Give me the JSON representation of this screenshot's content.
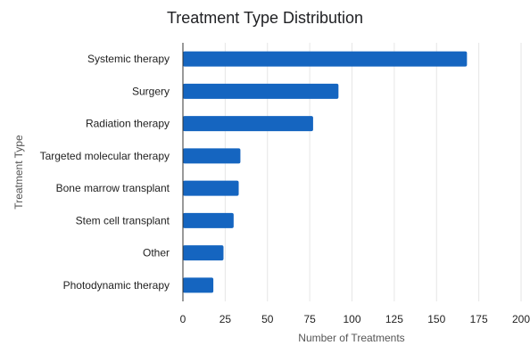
{
  "chart_data": {
    "type": "bar",
    "orientation": "horizontal",
    "title": "Treatment Type Distribution",
    "xlabel": "Number of Treatments",
    "ylabel": "Treatment Type",
    "categories": [
      "Systemic therapy",
      "Surgery",
      "Radiation therapy",
      "Targeted molecular therapy",
      "Bone marrow transplant",
      "Stem cell transplant",
      "Other",
      "Photodynamic therapy"
    ],
    "series": [
      {
        "values": [
          168,
          92,
          77,
          34,
          33,
          30,
          24,
          18
        ],
        "color": "#1565c0"
      }
    ],
    "xlim": [
      0,
      200
    ],
    "xticks": [
      0,
      25,
      50,
      75,
      100,
      125,
      150,
      175,
      200
    ],
    "grid": "vertical",
    "legend": "none"
  }
}
